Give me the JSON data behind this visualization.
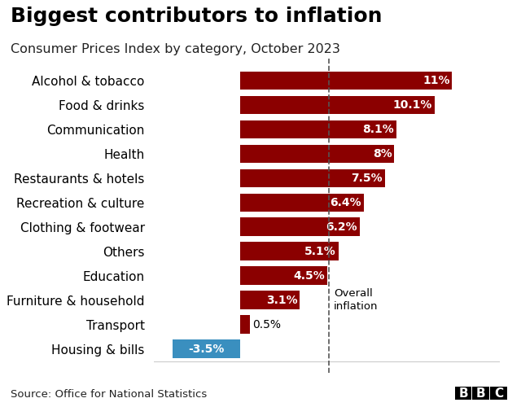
{
  "title": "Biggest contributors to inflation",
  "subtitle": "Consumer Prices Index by category, October 2023",
  "source": "Source: Office for National Statistics",
  "categories": [
    "Alcohol & tobacco",
    "Food & drinks",
    "Communication",
    "Health",
    "Restaurants & hotels",
    "Recreation & culture",
    "Clothing & footwear",
    "Others",
    "Education",
    "Furniture & household",
    "Transport",
    "Housing & bills"
  ],
  "values": [
    11.0,
    10.1,
    8.1,
    8.0,
    7.5,
    6.4,
    6.2,
    5.1,
    4.5,
    3.1,
    0.5,
    -3.5
  ],
  "bar_colors": [
    "#8b0000",
    "#8b0000",
    "#8b0000",
    "#8b0000",
    "#8b0000",
    "#8b0000",
    "#8b0000",
    "#8b0000",
    "#8b0000",
    "#8b0000",
    "#8b0000",
    "#3a8fbf"
  ],
  "label_texts": [
    "11%",
    "10.1%",
    "8.1%",
    "8%",
    "7.5%",
    "6.4%",
    "6.2%",
    "5.1%",
    "4.5%",
    "3.1%",
    "0.5%",
    "-3.5%"
  ],
  "label_inside": [
    true,
    true,
    true,
    true,
    true,
    true,
    true,
    true,
    true,
    true,
    false,
    true
  ],
  "overall_inflation_value": 4.6,
  "overall_inflation_label": "Overall\ninflation",
  "xlim": [
    -4.5,
    13.5
  ],
  "background_color": "#ffffff",
  "title_fontsize": 18,
  "subtitle_fontsize": 11.5,
  "label_fontsize": 10,
  "category_fontsize": 11,
  "source_fontsize": 9.5,
  "bbc_fontsize": 11
}
